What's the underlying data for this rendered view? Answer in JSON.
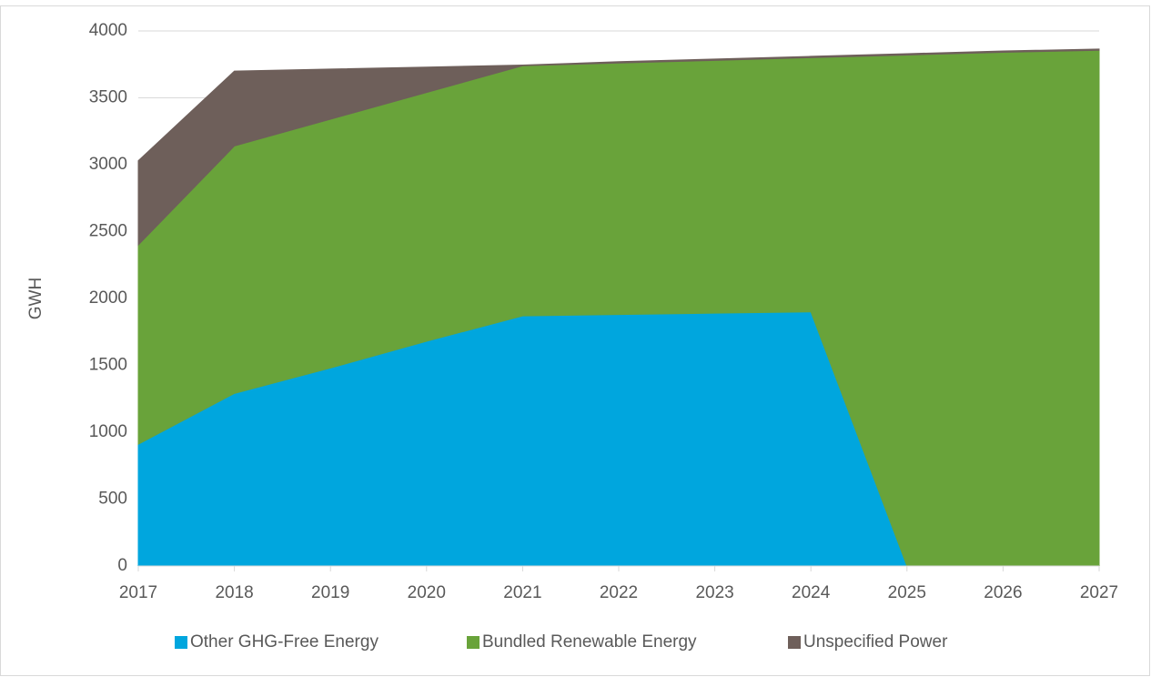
{
  "chart_data": {
    "type": "stacked_area",
    "y_label": "GWH",
    "categories": [
      "2017",
      "2018",
      "2019",
      "2020",
      "2021",
      "2022",
      "2023",
      "2024",
      "2025",
      "2026",
      "2027"
    ],
    "series": [
      {
        "name": "Other GHG-Free Energy",
        "color": "#00a6de",
        "values": [
          910,
          1290,
          1480,
          1680,
          1870,
          1880,
          1890,
          1900,
          0,
          0,
          0
        ]
      },
      {
        "name": "Bundled Renewable Energy",
        "color": "#69a33a",
        "values": [
          1490,
          1850,
          1860,
          1860,
          1870,
          1880,
          1890,
          1900,
          3820,
          3840,
          3855
        ]
      },
      {
        "name": "Unspecified Power",
        "color": "#6e5f5a",
        "values": [
          630,
          560,
          375,
          190,
          5,
          10,
          10,
          10,
          10,
          10,
          10
        ]
      }
    ],
    "ylim": [
      0,
      4000
    ],
    "yticks": [
      0,
      500,
      1000,
      1500,
      2000,
      2500,
      3000,
      3500,
      4000
    ],
    "grid": true,
    "legend": "bottom"
  }
}
